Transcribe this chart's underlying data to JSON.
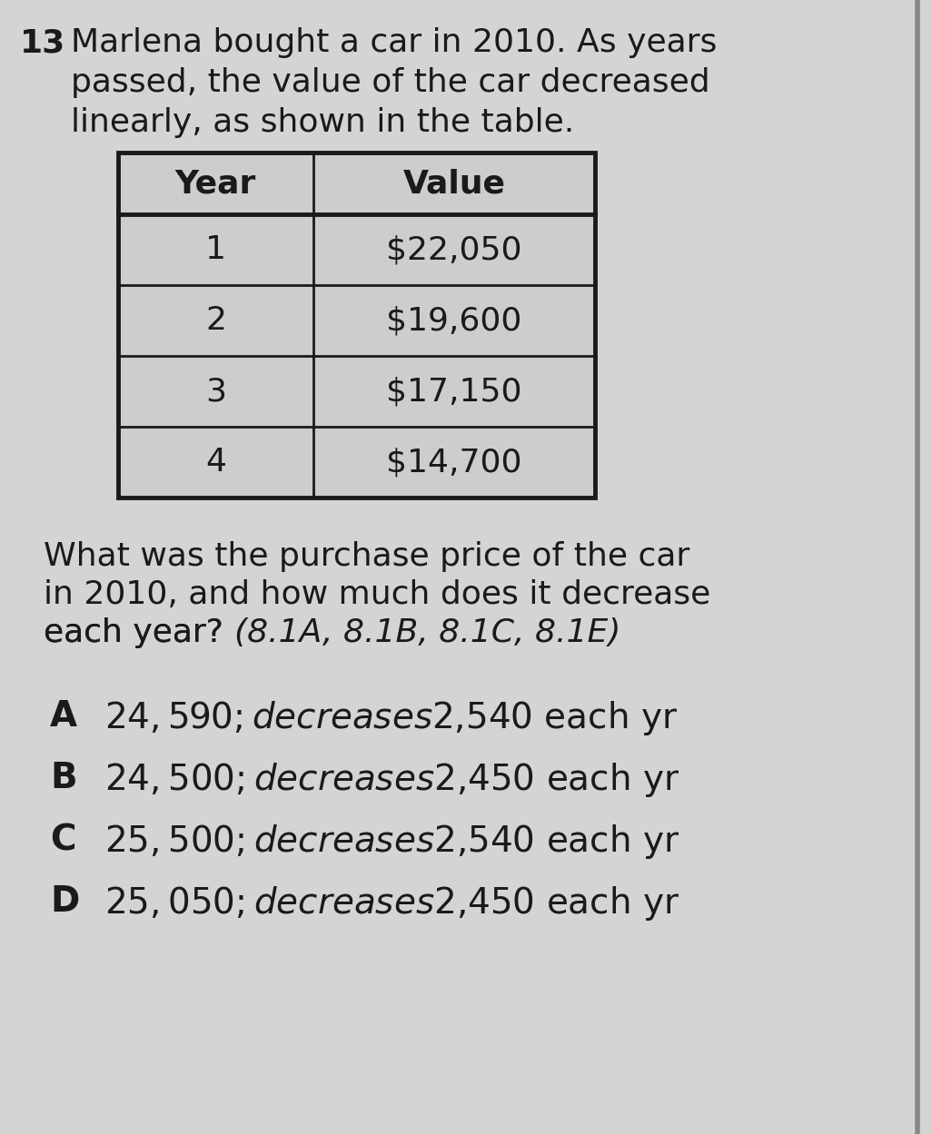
{
  "question_number": "13",
  "question_text_lines": [
    "Marlena bought a car in 2010. As years",
    "passed, the value of the car decreased",
    "linearly, as shown in the table."
  ],
  "table_headers": [
    "Year",
    "Value"
  ],
  "table_rows": [
    [
      "1",
      "$22,050"
    ],
    [
      "2",
      "$19,600"
    ],
    [
      "3",
      "$17,150"
    ],
    [
      "4",
      "$14,700"
    ]
  ],
  "question2_lines": [
    "What was the purchase price of the car",
    "in 2010, and how much does it decrease",
    "each year?"
  ],
  "question2_italic": "(8.1A, 8.1B, 8.1C, 8.1E)",
  "choices": [
    [
      "A",
      "$24,590; decreases $2,540 each yr"
    ],
    [
      "B",
      "$24,500; decreases $2,450 each yr"
    ],
    [
      "C",
      "$25,500; decreases $2,540 each yr"
    ],
    [
      "D",
      "$25,050; decreases $2,450 each yr"
    ]
  ],
  "background_color": "#d4d4d4",
  "text_color": "#1a1a1a",
  "table_border_color": "#1a1a1a",
  "table_fill_color": "#cdcdcd",
  "right_border_color": "#888888",
  "font_size_question": 26,
  "font_size_table_header": 26,
  "font_size_table_cell": 26,
  "font_size_q2": 26,
  "font_size_choices": 28
}
